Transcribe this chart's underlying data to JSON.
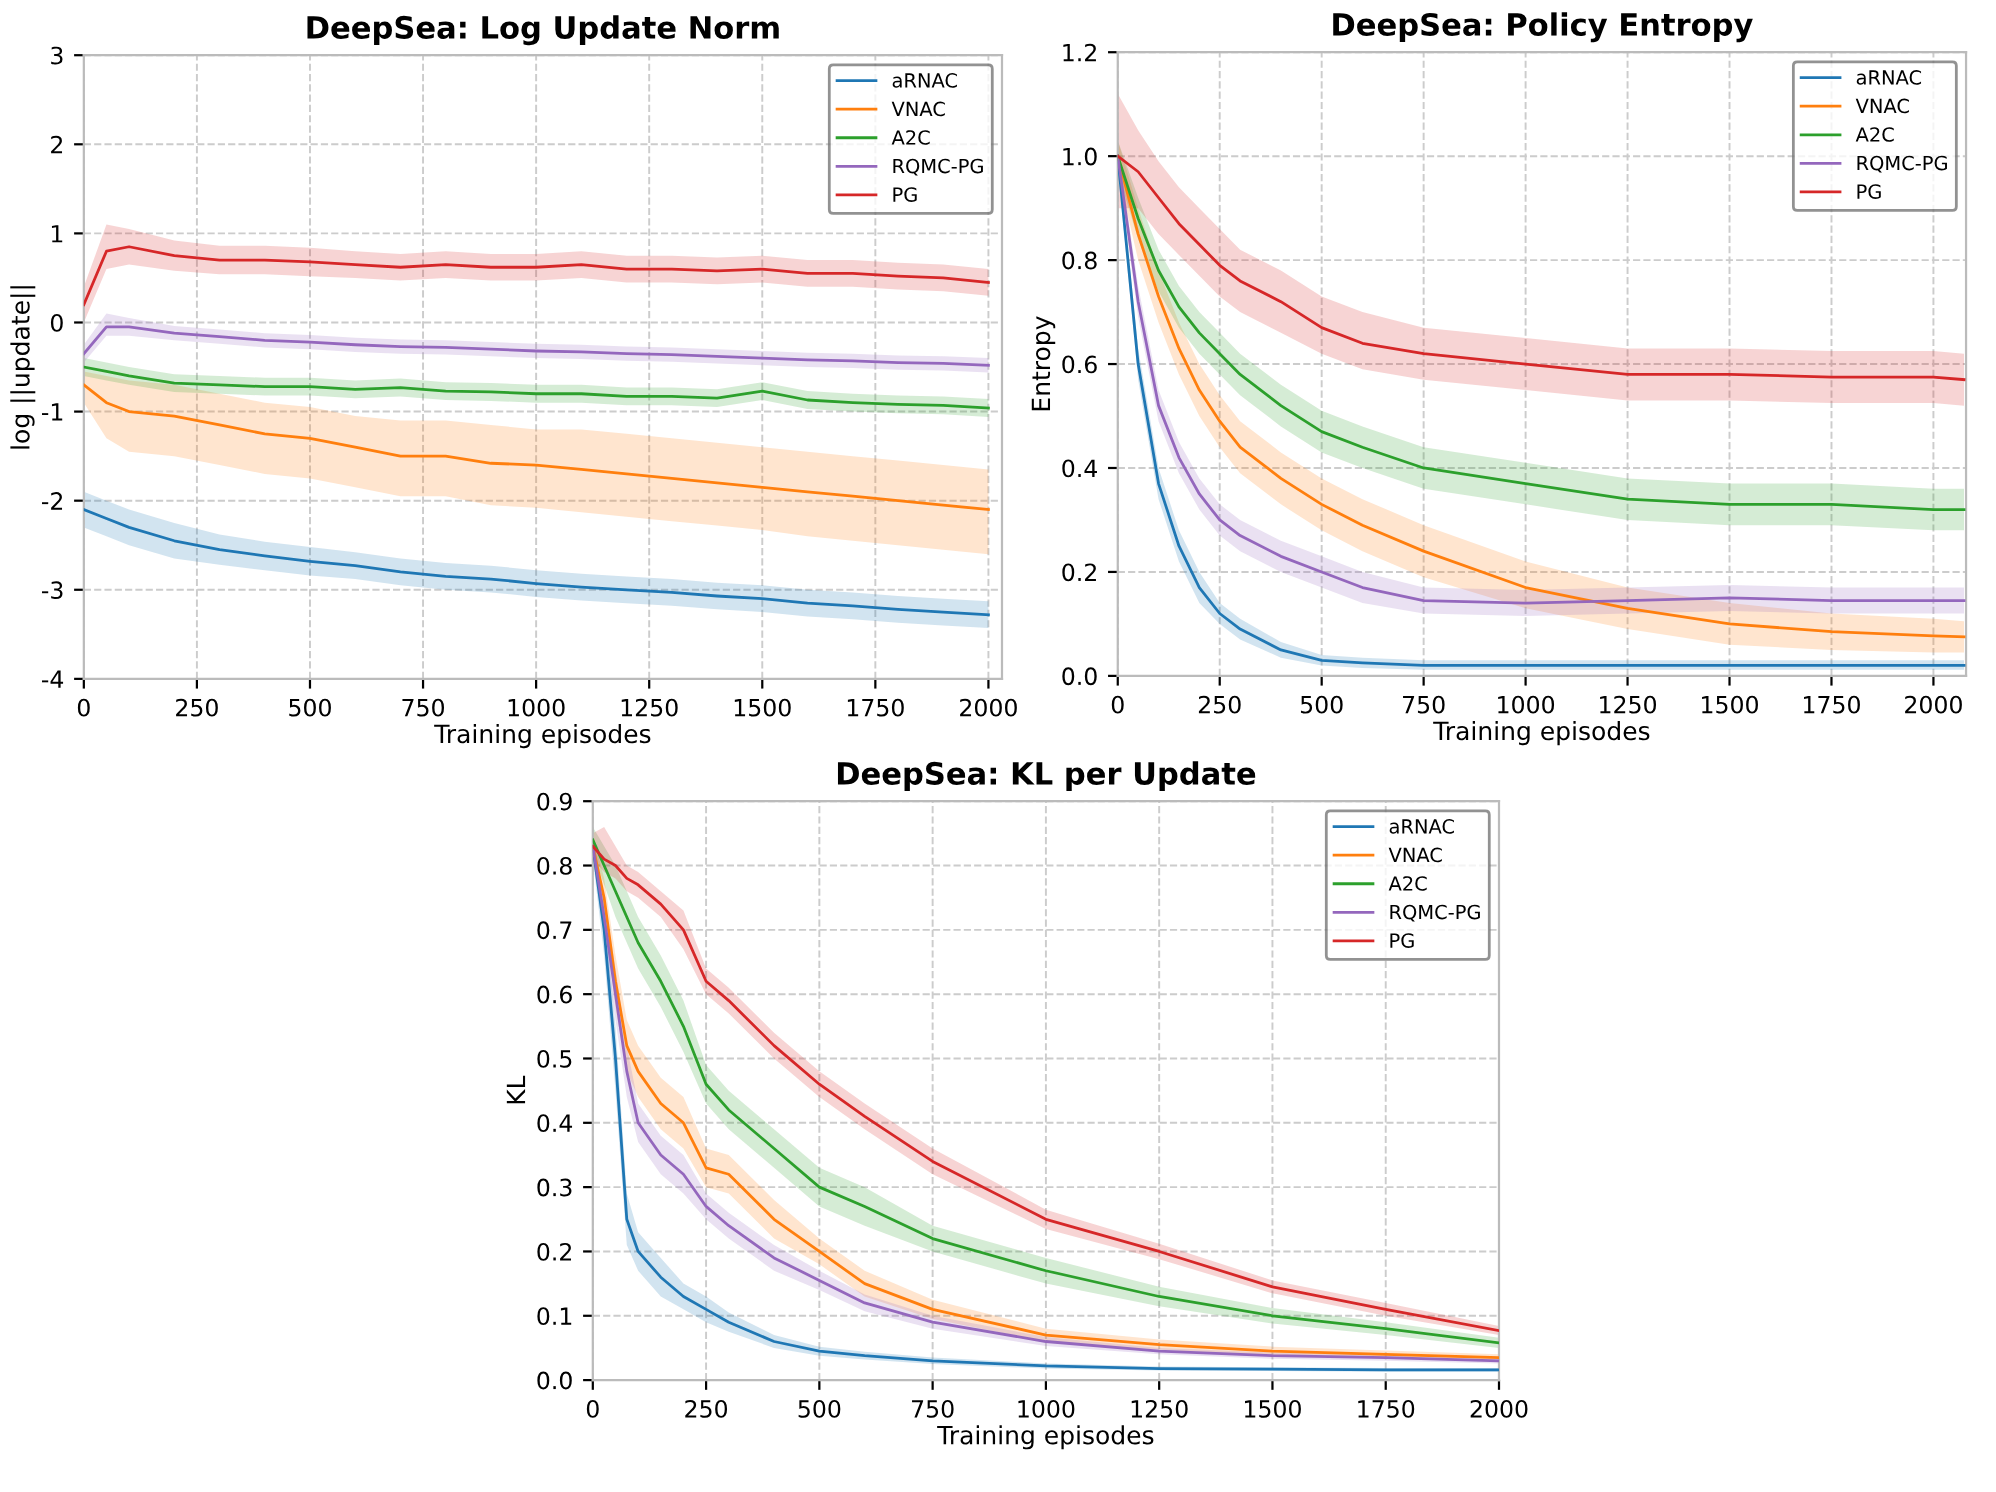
{
  "chart_data": [
    {
      "type": "line",
      "title": "DeepSea: Log Update Norm",
      "xlabel": "Training episodes",
      "ylabel": "log ||update||",
      "grid": true,
      "legend": "top right",
      "line_style": "solid",
      "marker": "none",
      "xlim": [
        0,
        2030
      ],
      "ylim": [
        -4,
        3
      ],
      "xticks": [
        0,
        250,
        500,
        750,
        1000,
        1250,
        1500,
        1750,
        2000
      ],
      "yticks": [
        -4,
        -3,
        -2,
        -1,
        0,
        1,
        2,
        3
      ],
      "x": [
        0,
        50,
        100,
        200,
        300,
        400,
        500,
        600,
        700,
        800,
        900,
        1000,
        1100,
        1200,
        1300,
        1400,
        1500,
        1600,
        1700,
        1800,
        1900,
        2000
      ],
      "series": [
        {
          "name": "aRNAC",
          "color": "#1f77b4",
          "values": [
            -2.1,
            -2.2,
            -2.3,
            -2.45,
            -2.55,
            -2.62,
            -2.68,
            -2.73,
            -2.8,
            -2.85,
            -2.88,
            -2.93,
            -2.97,
            -3.0,
            -3.03,
            -3.07,
            -3.1,
            -3.15,
            -3.18,
            -3.22,
            -3.25,
            -3.28
          ],
          "lower": [
            -2.3,
            -2.4,
            -2.5,
            -2.65,
            -2.72,
            -2.78,
            -2.84,
            -2.88,
            -2.95,
            -3.0,
            -3.03,
            -3.08,
            -3.12,
            -3.15,
            -3.18,
            -3.22,
            -3.25,
            -3.3,
            -3.33,
            -3.37,
            -3.4,
            -3.43
          ],
          "upper": [
            -1.9,
            -2.0,
            -2.1,
            -2.25,
            -2.38,
            -2.46,
            -2.52,
            -2.58,
            -2.65,
            -2.7,
            -2.73,
            -2.78,
            -2.82,
            -2.85,
            -2.88,
            -2.92,
            -2.95,
            -3.0,
            -3.03,
            -3.07,
            -3.1,
            -3.13
          ]
        },
        {
          "name": "VNAC",
          "color": "#ff7f0e",
          "values": [
            -0.7,
            -0.9,
            -1.0,
            -1.05,
            -1.15,
            -1.25,
            -1.3,
            -1.4,
            -1.5,
            -1.5,
            -1.58,
            -1.6,
            -1.65,
            -1.7,
            -1.75,
            -1.8,
            -1.85,
            -1.9,
            -1.95,
            -2.0,
            -2.05,
            -2.1
          ],
          "lower": [
            -0.9,
            -1.3,
            -1.45,
            -1.5,
            -1.6,
            -1.7,
            -1.75,
            -1.85,
            -1.95,
            -1.95,
            -2.05,
            -2.08,
            -2.13,
            -2.18,
            -2.23,
            -2.28,
            -2.33,
            -2.4,
            -2.45,
            -2.5,
            -2.55,
            -2.6
          ],
          "upper": [
            -0.55,
            -0.6,
            -0.65,
            -0.7,
            -0.8,
            -0.9,
            -0.95,
            -1.05,
            -1.1,
            -1.1,
            -1.15,
            -1.2,
            -1.2,
            -1.25,
            -1.3,
            -1.35,
            -1.4,
            -1.45,
            -1.5,
            -1.55,
            -1.6,
            -1.65
          ]
        },
        {
          "name": "A2C",
          "color": "#2ca02c",
          "values": [
            -0.5,
            -0.55,
            -0.6,
            -0.68,
            -0.7,
            -0.72,
            -0.72,
            -0.75,
            -0.73,
            -0.77,
            -0.78,
            -0.8,
            -0.8,
            -0.83,
            -0.83,
            -0.85,
            -0.77,
            -0.87,
            -0.9,
            -0.92,
            -0.93,
            -0.96
          ],
          "lower": [
            -0.6,
            -0.65,
            -0.7,
            -0.78,
            -0.8,
            -0.82,
            -0.82,
            -0.85,
            -0.83,
            -0.87,
            -0.88,
            -0.9,
            -0.9,
            -0.93,
            -0.93,
            -0.95,
            -0.87,
            -0.97,
            -1.0,
            -1.02,
            -1.03,
            -1.06
          ],
          "upper": [
            -0.4,
            -0.45,
            -0.5,
            -0.58,
            -0.6,
            -0.62,
            -0.62,
            -0.65,
            -0.63,
            -0.67,
            -0.68,
            -0.7,
            -0.7,
            -0.73,
            -0.73,
            -0.75,
            -0.67,
            -0.77,
            -0.8,
            -0.82,
            -0.83,
            -0.86
          ]
        },
        {
          "name": "RQMC-PG",
          "color": "#9467bd",
          "values": [
            -0.35,
            -0.05,
            -0.05,
            -0.12,
            -0.16,
            -0.2,
            -0.22,
            -0.25,
            -0.27,
            -0.28,
            -0.3,
            -0.32,
            -0.33,
            -0.35,
            -0.36,
            -0.38,
            -0.4,
            -0.42,
            -0.43,
            -0.45,
            -0.46,
            -0.48
          ],
          "lower": [
            -0.45,
            -0.15,
            -0.15,
            -0.2,
            -0.24,
            -0.28,
            -0.3,
            -0.33,
            -0.35,
            -0.36,
            -0.38,
            -0.4,
            -0.41,
            -0.43,
            -0.44,
            -0.46,
            -0.48,
            -0.5,
            -0.51,
            -0.53,
            -0.54,
            -0.56
          ],
          "upper": [
            -0.25,
            0.1,
            0.05,
            -0.04,
            -0.08,
            -0.12,
            -0.14,
            -0.17,
            -0.19,
            -0.2,
            -0.22,
            -0.24,
            -0.25,
            -0.27,
            -0.28,
            -0.3,
            -0.32,
            -0.34,
            -0.35,
            -0.37,
            -0.38,
            -0.4
          ]
        },
        {
          "name": "PG",
          "color": "#d62728",
          "values": [
            0.2,
            0.8,
            0.85,
            0.75,
            0.7,
            0.7,
            0.68,
            0.65,
            0.62,
            0.65,
            0.62,
            0.62,
            0.65,
            0.6,
            0.6,
            0.58,
            0.6,
            0.55,
            0.55,
            0.52,
            0.5,
            0.45
          ],
          "lower": [
            0.0,
            0.6,
            0.65,
            0.58,
            0.54,
            0.54,
            0.52,
            0.5,
            0.47,
            0.5,
            0.47,
            0.47,
            0.5,
            0.45,
            0.45,
            0.43,
            0.45,
            0.4,
            0.4,
            0.37,
            0.35,
            0.3
          ],
          "upper": [
            0.4,
            1.1,
            1.05,
            0.92,
            0.86,
            0.86,
            0.84,
            0.8,
            0.77,
            0.8,
            0.77,
            0.77,
            0.8,
            0.75,
            0.75,
            0.73,
            0.75,
            0.7,
            0.7,
            0.67,
            0.65,
            0.6
          ]
        }
      ]
    },
    {
      "type": "line",
      "title": "DeepSea: Policy Entropy",
      "xlabel": "Training episodes",
      "ylabel": "Entropy",
      "grid": true,
      "legend": "top right",
      "line_style": "solid",
      "marker": "none",
      "xlim": [
        0,
        2080
      ],
      "ylim": [
        0,
        1.2
      ],
      "xticks": [
        0,
        250,
        500,
        750,
        1000,
        1250,
        1500,
        1750,
        2000
      ],
      "yticks": [
        {
          "value": 0,
          "label": "0.0"
        },
        {
          "value": 0.2,
          "label": "0.2"
        },
        {
          "value": 0.4,
          "label": "0.4"
        },
        {
          "value": 0.6,
          "label": "0.6"
        },
        {
          "value": 0.8,
          "label": "0.8"
        },
        {
          "value": 1.0,
          "label": "1.0"
        },
        {
          "value": 1.2,
          "label": "1.2"
        }
      ],
      "x": [
        0,
        50,
        100,
        150,
        200,
        250,
        300,
        400,
        500,
        600,
        750,
        1000,
        1250,
        1500,
        1750,
        2000,
        2075
      ],
      "series": [
        {
          "name": "aRNAC",
          "color": "#1f77b4",
          "values": [
            1.0,
            0.6,
            0.37,
            0.25,
            0.17,
            0.12,
            0.09,
            0.05,
            0.03,
            0.025,
            0.02,
            0.02,
            0.02,
            0.02,
            0.02,
            0.02,
            0.02
          ],
          "lower": [
            0.98,
            0.57,
            0.34,
            0.22,
            0.14,
            0.1,
            0.07,
            0.035,
            0.02,
            0.015,
            0.012,
            0.012,
            0.012,
            0.012,
            0.012,
            0.012,
            0.012
          ],
          "upper": [
            1.02,
            0.63,
            0.4,
            0.28,
            0.2,
            0.14,
            0.11,
            0.065,
            0.04,
            0.035,
            0.03,
            0.03,
            0.03,
            0.03,
            0.03,
            0.03,
            0.03
          ]
        },
        {
          "name": "VNAC",
          "color": "#ff7f0e",
          "values": [
            1.0,
            0.85,
            0.73,
            0.63,
            0.55,
            0.49,
            0.44,
            0.38,
            0.33,
            0.29,
            0.24,
            0.17,
            0.13,
            0.1,
            0.085,
            0.077,
            0.075
          ],
          "lower": [
            0.97,
            0.8,
            0.68,
            0.58,
            0.5,
            0.44,
            0.39,
            0.33,
            0.28,
            0.24,
            0.19,
            0.13,
            0.09,
            0.06,
            0.05,
            0.045,
            0.045
          ],
          "upper": [
            1.03,
            0.9,
            0.78,
            0.68,
            0.6,
            0.54,
            0.49,
            0.43,
            0.38,
            0.34,
            0.29,
            0.22,
            0.17,
            0.14,
            0.12,
            0.11,
            0.105
          ]
        },
        {
          "name": "A2C",
          "color": "#2ca02c",
          "values": [
            1.0,
            0.88,
            0.78,
            0.71,
            0.66,
            0.62,
            0.58,
            0.52,
            0.47,
            0.44,
            0.4,
            0.37,
            0.34,
            0.33,
            0.33,
            0.32,
            0.32
          ],
          "lower": [
            0.97,
            0.84,
            0.74,
            0.67,
            0.62,
            0.58,
            0.54,
            0.48,
            0.43,
            0.4,
            0.36,
            0.33,
            0.3,
            0.29,
            0.29,
            0.28,
            0.28
          ],
          "upper": [
            1.03,
            0.92,
            0.82,
            0.75,
            0.7,
            0.66,
            0.62,
            0.56,
            0.51,
            0.48,
            0.44,
            0.41,
            0.38,
            0.37,
            0.37,
            0.36,
            0.36
          ]
        },
        {
          "name": "RQMC-PG",
          "color": "#9467bd",
          "values": [
            1.0,
            0.72,
            0.52,
            0.42,
            0.35,
            0.3,
            0.27,
            0.23,
            0.2,
            0.17,
            0.145,
            0.14,
            0.145,
            0.15,
            0.145,
            0.145,
            0.145
          ],
          "lower": [
            0.98,
            0.69,
            0.49,
            0.39,
            0.32,
            0.27,
            0.24,
            0.2,
            0.17,
            0.14,
            0.12,
            0.115,
            0.12,
            0.125,
            0.12,
            0.12,
            0.12
          ],
          "upper": [
            1.02,
            0.75,
            0.55,
            0.45,
            0.38,
            0.33,
            0.3,
            0.26,
            0.23,
            0.2,
            0.17,
            0.165,
            0.17,
            0.175,
            0.17,
            0.17,
            0.17
          ]
        },
        {
          "name": "PG",
          "color": "#d62728",
          "values": [
            1.0,
            0.97,
            0.92,
            0.87,
            0.83,
            0.79,
            0.76,
            0.72,
            0.67,
            0.64,
            0.62,
            0.6,
            0.58,
            0.58,
            0.575,
            0.575,
            0.57
          ],
          "lower": [
            0.9,
            0.9,
            0.85,
            0.81,
            0.77,
            0.73,
            0.7,
            0.66,
            0.62,
            0.59,
            0.57,
            0.55,
            0.53,
            0.53,
            0.525,
            0.525,
            0.52
          ],
          "upper": [
            1.12,
            1.05,
            0.99,
            0.94,
            0.9,
            0.86,
            0.82,
            0.78,
            0.73,
            0.7,
            0.67,
            0.65,
            0.63,
            0.63,
            0.625,
            0.625,
            0.62
          ]
        }
      ]
    },
    {
      "type": "line",
      "title": "DeepSea: KL per Update",
      "xlabel": "Training episodes",
      "ylabel": "KL",
      "grid": true,
      "legend": "top right",
      "line_style": "solid",
      "marker": "none",
      "xlim": [
        0,
        2000
      ],
      "ylim": [
        0,
        0.9
      ],
      "xticks": [
        0,
        250,
        500,
        750,
        1000,
        1250,
        1500,
        1750,
        2000
      ],
      "yticks": [
        {
          "value": 0,
          "label": "0.0"
        },
        {
          "value": 0.1,
          "label": "0.1"
        },
        {
          "value": 0.2,
          "label": "0.2"
        },
        {
          "value": 0.3,
          "label": "0.3"
        },
        {
          "value": 0.4,
          "label": "0.4"
        },
        {
          "value": 0.5,
          "label": "0.5"
        },
        {
          "value": 0.6,
          "label": "0.6"
        },
        {
          "value": 0.7,
          "label": "0.7"
        },
        {
          "value": 0.8,
          "label": "0.8"
        },
        {
          "value": 0.9,
          "label": "0.9"
        }
      ],
      "x": [
        0,
        25,
        50,
        75,
        100,
        150,
        200,
        250,
        300,
        400,
        500,
        600,
        750,
        1000,
        1250,
        1500,
        1750,
        2000
      ],
      "series": [
        {
          "name": "aRNAC",
          "color": "#1f77b4",
          "values": [
            0.83,
            0.7,
            0.5,
            0.25,
            0.2,
            0.16,
            0.13,
            0.11,
            0.09,
            0.06,
            0.045,
            0.038,
            0.03,
            0.022,
            0.018,
            0.017,
            0.016,
            0.016
          ],
          "lower": [
            0.81,
            0.66,
            0.45,
            0.21,
            0.17,
            0.13,
            0.11,
            0.09,
            0.075,
            0.05,
            0.038,
            0.032,
            0.025,
            0.018,
            0.015,
            0.014,
            0.013,
            0.013
          ],
          "upper": [
            0.85,
            0.74,
            0.55,
            0.29,
            0.23,
            0.19,
            0.15,
            0.13,
            0.105,
            0.07,
            0.052,
            0.044,
            0.035,
            0.026,
            0.021,
            0.02,
            0.019,
            0.019
          ]
        },
        {
          "name": "VNAC",
          "color": "#ff7f0e",
          "values": [
            0.83,
            0.75,
            0.62,
            0.52,
            0.48,
            0.43,
            0.4,
            0.33,
            0.32,
            0.25,
            0.2,
            0.15,
            0.11,
            0.07,
            0.055,
            0.045,
            0.04,
            0.035
          ],
          "lower": [
            0.81,
            0.72,
            0.58,
            0.48,
            0.44,
            0.39,
            0.36,
            0.3,
            0.29,
            0.22,
            0.18,
            0.13,
            0.095,
            0.06,
            0.047,
            0.038,
            0.034,
            0.03
          ],
          "upper": [
            0.85,
            0.78,
            0.66,
            0.56,
            0.52,
            0.47,
            0.44,
            0.36,
            0.35,
            0.28,
            0.22,
            0.17,
            0.125,
            0.08,
            0.063,
            0.052,
            0.046,
            0.04
          ]
        },
        {
          "name": "A2C",
          "color": "#2ca02c",
          "values": [
            0.84,
            0.8,
            0.76,
            0.72,
            0.68,
            0.62,
            0.55,
            0.46,
            0.42,
            0.36,
            0.3,
            0.27,
            0.22,
            0.17,
            0.13,
            0.1,
            0.08,
            0.058
          ],
          "lower": [
            0.82,
            0.77,
            0.72,
            0.68,
            0.64,
            0.58,
            0.51,
            0.43,
            0.39,
            0.33,
            0.27,
            0.24,
            0.2,
            0.15,
            0.115,
            0.088,
            0.07,
            0.05
          ],
          "upper": [
            0.86,
            0.83,
            0.8,
            0.76,
            0.72,
            0.66,
            0.59,
            0.49,
            0.45,
            0.39,
            0.33,
            0.3,
            0.24,
            0.19,
            0.145,
            0.112,
            0.09,
            0.066
          ]
        },
        {
          "name": "RQMC-PG",
          "color": "#9467bd",
          "values": [
            0.83,
            0.72,
            0.6,
            0.48,
            0.4,
            0.35,
            0.32,
            0.27,
            0.24,
            0.19,
            0.155,
            0.12,
            0.09,
            0.06,
            0.045,
            0.038,
            0.035,
            0.03
          ],
          "lower": [
            0.81,
            0.69,
            0.56,
            0.44,
            0.37,
            0.32,
            0.29,
            0.25,
            0.22,
            0.17,
            0.14,
            0.107,
            0.08,
            0.053,
            0.04,
            0.033,
            0.03,
            0.026
          ],
          "upper": [
            0.85,
            0.75,
            0.64,
            0.52,
            0.43,
            0.38,
            0.35,
            0.29,
            0.26,
            0.21,
            0.17,
            0.133,
            0.1,
            0.067,
            0.05,
            0.043,
            0.04,
            0.034
          ]
        },
        {
          "name": "PG",
          "color": "#d62728",
          "values": [
            0.83,
            0.81,
            0.8,
            0.78,
            0.77,
            0.74,
            0.7,
            0.62,
            0.59,
            0.52,
            0.46,
            0.41,
            0.34,
            0.25,
            0.2,
            0.145,
            0.11,
            0.077
          ],
          "lower": [
            0.81,
            0.79,
            0.78,
            0.76,
            0.75,
            0.72,
            0.67,
            0.6,
            0.57,
            0.5,
            0.44,
            0.39,
            0.32,
            0.235,
            0.188,
            0.135,
            0.1,
            0.07
          ],
          "upper": [
            0.85,
            0.86,
            0.83,
            0.8,
            0.79,
            0.76,
            0.73,
            0.64,
            0.61,
            0.54,
            0.48,
            0.43,
            0.36,
            0.265,
            0.212,
            0.155,
            0.12,
            0.084
          ]
        }
      ]
    }
  ]
}
